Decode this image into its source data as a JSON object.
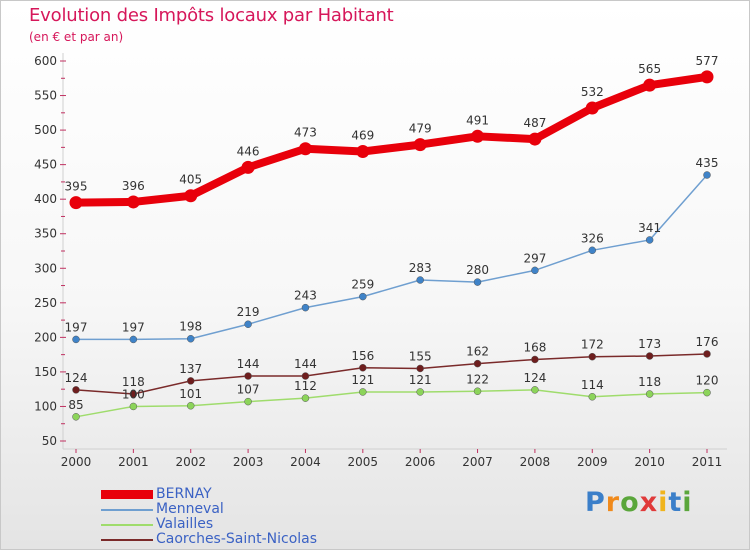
{
  "title": "Evolution des Impôts locaux par Habitant",
  "subtitle": "(en € et par an)",
  "brand": {
    "text": "Proxiti",
    "letter_colors": [
      "#3b7fc9",
      "#f08a1c",
      "#5aa63b",
      "#e03a3a",
      "#f0b41c",
      "#3b7fc9",
      "#5aa63b"
    ]
  },
  "chart_data": {
    "type": "line",
    "categories": [
      "2000",
      "2001",
      "2002",
      "2003",
      "2004",
      "2005",
      "2006",
      "2007",
      "2008",
      "2009",
      "2010",
      "2011"
    ],
    "ylim": [
      50,
      600
    ],
    "yticks": [
      50,
      100,
      150,
      200,
      250,
      300,
      350,
      400,
      450,
      500,
      550,
      600
    ],
    "grid": false,
    "legend_position": "bottom-left",
    "series": [
      {
        "name": "BERNAY",
        "color": "#e8000b",
        "weight": "thick",
        "values": [
          395,
          396,
          405,
          446,
          473,
          469,
          479,
          491,
          487,
          532,
          565,
          577
        ]
      },
      {
        "name": "Menneval",
        "color": "#6f9fd0",
        "marker_color": "#3f83c8",
        "weight": "thin",
        "values": [
          197,
          197,
          198,
          219,
          243,
          259,
          283,
          280,
          297,
          326,
          341,
          435
        ]
      },
      {
        "name": "Valailles",
        "color": "#9fdc6c",
        "marker_color": "#8cd45a",
        "weight": "thin",
        "values": [
          85,
          100,
          101,
          107,
          112,
          121,
          121,
          122,
          124,
          114,
          118,
          120
        ]
      },
      {
        "name": "Caorches-Saint-Nicolas",
        "color": "#7a2a2a",
        "marker_color": "#6e1e1e",
        "weight": "thin",
        "values": [
          124,
          118,
          137,
          144,
          144,
          156,
          155,
          162,
          168,
          172,
          173,
          176
        ]
      }
    ]
  }
}
